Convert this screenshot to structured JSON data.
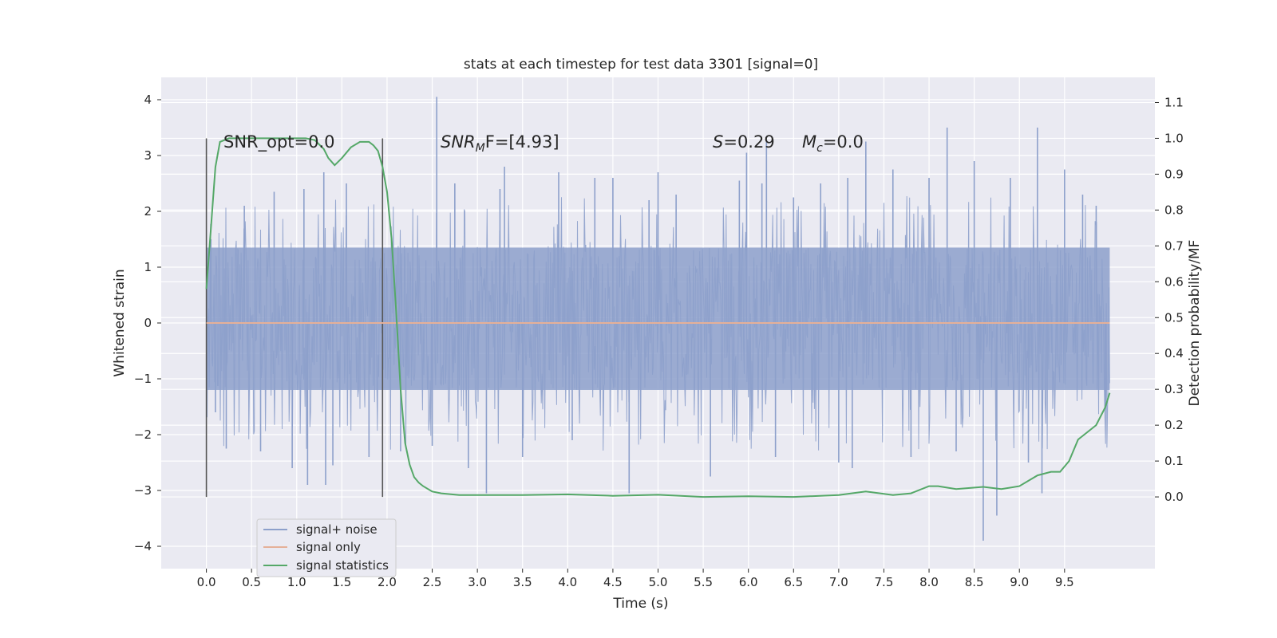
{
  "chart_data": {
    "type": "line",
    "title": "stats at each timestep for test data 3301 [signal=0]",
    "xlabel": "Time (s)",
    "ylabel_left": "Whitened strain",
    "ylabel_right": "Detection probability/MF",
    "xlim": [
      -0.5,
      10.5
    ],
    "ylim_left": [
      -4.4,
      4.4
    ],
    "ylim_right": [
      -0.2,
      1.17
    ],
    "x_ticks": [
      "0.0",
      "0.5",
      "1.0",
      "1.5",
      "2.0",
      "2.5",
      "3.0",
      "3.5",
      "4.0",
      "4.5",
      "5.0",
      "5.5",
      "6.0",
      "6.5",
      "7.0",
      "7.5",
      "8.0",
      "8.5",
      "9.0",
      "9.5"
    ],
    "y_ticks_left": [
      "4",
      "3",
      "2",
      "1",
      "0",
      "−1",
      "−2",
      "−3",
      "−4"
    ],
    "y_ticks_right": [
      "1.1",
      "1.0",
      "0.9",
      "0.8",
      "0.7",
      "0.6",
      "0.5",
      "0.4",
      "0.3",
      "0.2",
      "0.1",
      "0.0"
    ],
    "grid": true,
    "legend_position": "lower-left",
    "annotations": {
      "snr_opt": "SNR_opt=0.0",
      "snr_mf_sym": "SNR",
      "snr_mf_sub": "M",
      "snr_mf_rest": "F=[4.93]",
      "s_sym": "S",
      "s_rest": "=0.29",
      "mc_sym": "M",
      "mc_sub": "c",
      "mc_rest": "=0.0"
    },
    "vlines_x": [
      0.0,
      1.95
    ],
    "series": [
      {
        "name": "signal+ noise",
        "axis": "left",
        "color": "#8da0cb",
        "x_range": [
          0.0,
          10.0
        ],
        "envelope_core": [
          -1.2,
          1.35
        ],
        "spikes": [
          [
            0.05,
            1.5
          ],
          [
            0.1,
            -1.6
          ],
          [
            0.22,
            -2.25
          ],
          [
            0.42,
            2.1
          ],
          [
            0.6,
            -2.3
          ],
          [
            0.75,
            2.35
          ],
          [
            0.95,
            -2.6
          ],
          [
            1.08,
            2.4
          ],
          [
            1.12,
            -2.9
          ],
          [
            1.3,
            2.7
          ],
          [
            1.32,
            -2.9
          ],
          [
            1.4,
            -2.55
          ],
          [
            1.55,
            2.5
          ],
          [
            1.8,
            -2.4
          ],
          [
            2.15,
            -2.3
          ],
          [
            2.5,
            -2.2
          ],
          [
            2.55,
            4.05
          ],
          [
            2.75,
            2.5
          ],
          [
            2.9,
            -2.6
          ],
          [
            3.1,
            -3.05
          ],
          [
            3.25,
            2.4
          ],
          [
            3.3,
            2.8
          ],
          [
            3.5,
            -2.4
          ],
          [
            3.9,
            2.7
          ],
          [
            4.05,
            -2.1
          ],
          [
            4.3,
            2.6
          ],
          [
            4.5,
            2.6
          ],
          [
            4.68,
            -3.05
          ],
          [
            4.9,
            2.2
          ],
          [
            5.0,
            2.7
          ],
          [
            5.2,
            2.3
          ],
          [
            5.58,
            -2.75
          ],
          [
            5.9,
            2.55
          ],
          [
            5.98,
            3.05
          ],
          [
            6.15,
            2.5
          ],
          [
            6.2,
            3.25
          ],
          [
            6.3,
            -2.4
          ],
          [
            6.5,
            2.25
          ],
          [
            6.8,
            2.5
          ],
          [
            7.0,
            -2.5
          ],
          [
            7.1,
            2.6
          ],
          [
            7.15,
            -2.6
          ],
          [
            7.3,
            3.25
          ],
          [
            7.6,
            2.75
          ],
          [
            7.8,
            -2.4
          ],
          [
            8.0,
            2.6
          ],
          [
            8.2,
            3.5
          ],
          [
            8.3,
            -2.3
          ],
          [
            8.5,
            2.9
          ],
          [
            8.6,
            -3.9
          ],
          [
            8.75,
            -3.45
          ],
          [
            8.9,
            2.6
          ],
          [
            9.1,
            -2.5
          ],
          [
            9.2,
            3.5
          ],
          [
            9.25,
            -3.05
          ],
          [
            9.5,
            2.75
          ],
          [
            9.7,
            2.3
          ],
          [
            9.85,
            2.1
          ],
          [
            9.95,
            -1.5
          ]
        ]
      },
      {
        "name": "signal only",
        "axis": "left",
        "color": "#e5b098",
        "x": [
          0.0,
          10.0
        ],
        "y": [
          0.0,
          0.0
        ]
      },
      {
        "name": "signal statistics",
        "axis": "right",
        "color": "#55a868",
        "x": [
          0.0,
          0.05,
          0.1,
          0.15,
          0.25,
          0.4,
          0.6,
          0.8,
          1.0,
          1.1,
          1.2,
          1.3,
          1.35,
          1.42,
          1.5,
          1.6,
          1.7,
          1.8,
          1.85,
          1.9,
          1.95,
          2.0,
          2.05,
          2.1,
          2.15,
          2.2,
          2.25,
          2.3,
          2.35,
          2.4,
          2.5,
          2.6,
          2.8,
          3.0,
          3.5,
          4.0,
          4.5,
          5.0,
          5.5,
          6.0,
          6.5,
          7.0,
          7.3,
          7.6,
          7.8,
          8.0,
          8.1,
          8.3,
          8.6,
          8.8,
          9.0,
          9.2,
          9.35,
          9.45,
          9.55,
          9.65,
          9.75,
          9.85,
          9.95,
          10.0
        ],
        "y": [
          0.58,
          0.75,
          0.92,
          0.99,
          1.0,
          1.0,
          1.0,
          1.0,
          1.0,
          1.0,
          0.995,
          0.97,
          0.945,
          0.925,
          0.945,
          0.975,
          0.99,
          0.99,
          0.98,
          0.965,
          0.92,
          0.85,
          0.72,
          0.52,
          0.3,
          0.15,
          0.09,
          0.055,
          0.04,
          0.03,
          0.015,
          0.01,
          0.005,
          0.005,
          0.005,
          0.007,
          0.003,
          0.006,
          0.0,
          0.002,
          0.0,
          0.005,
          0.015,
          0.005,
          0.01,
          0.03,
          0.03,
          0.022,
          0.028,
          0.022,
          0.03,
          0.06,
          0.07,
          0.07,
          0.1,
          0.16,
          0.18,
          0.2,
          0.25,
          0.29
        ]
      }
    ]
  }
}
